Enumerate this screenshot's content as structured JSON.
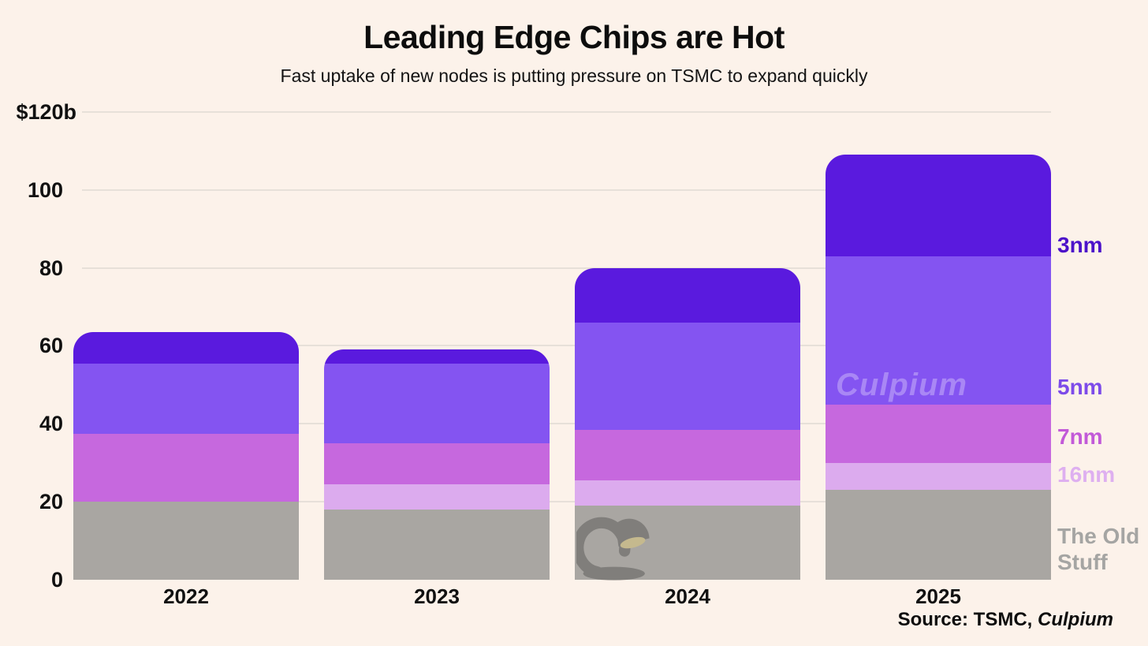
{
  "title": "Leading Edge Chips are Hot",
  "subtitle": "Fast uptake of new nodes is putting pressure on TSMC to expand quickly",
  "watermark": "Culpium",
  "source": {
    "prefix": "Source: TSMC, ",
    "brand": "Culpium"
  },
  "colors": {
    "background": "#fcf2ea",
    "gridline": "#e7e0d9",
    "text": "#0d0d0d",
    "node_3nm": "#5a1ade",
    "node_5nm": "#8454f1",
    "node_7nm": "#c668de",
    "node_16nm": "#dcabee",
    "old_stuff": "#a9a6a2"
  },
  "legend": {
    "position": "right",
    "items": [
      {
        "label": "3nm",
        "color": "#4c12c9"
      },
      {
        "label": "5nm",
        "color": "#7d4be9"
      },
      {
        "label": "7nm",
        "color": "#c25ad8"
      },
      {
        "label": "16nm",
        "color": "#deaff0"
      },
      {
        "label": "The Old Stuff",
        "color": "#a5a5a3"
      }
    ]
  },
  "chart_data": {
    "type": "bar",
    "stacked": true,
    "title": "Leading Edge Chips are Hot",
    "subtitle": "Fast uptake of new nodes is putting pressure on TSMC to expand quickly",
    "unit": "billions USD (TSMC revenue by node)",
    "categories": [
      "2022",
      "2023",
      "2024",
      "2025"
    ],
    "series": [
      {
        "name": "The Old Stuff",
        "color": "#a9a6a2",
        "values": [
          20,
          18,
          19,
          23
        ]
      },
      {
        "name": "16nm",
        "color": "#dcabee",
        "values": [
          0,
          6.5,
          6.5,
          7
        ]
      },
      {
        "name": "7nm",
        "color": "#c668de",
        "values": [
          17.5,
          10.5,
          13,
          15
        ]
      },
      {
        "name": "5nm",
        "color": "#8454f1",
        "values": [
          18,
          20.5,
          27.5,
          38
        ]
      },
      {
        "name": "3nm",
        "color": "#5a1ade",
        "values": [
          8,
          3.5,
          14,
          26
        ]
      }
    ],
    "totals": [
      63.5,
      59,
      80,
      109
    ],
    "ylim": [
      0,
      120
    ],
    "grid": true,
    "legend_position": "right",
    "yticks": [
      {
        "value": 0,
        "label": "0"
      },
      {
        "value": 20,
        "label": "20"
      },
      {
        "value": 40,
        "label": "40"
      },
      {
        "value": 60,
        "label": "60"
      },
      {
        "value": 80,
        "label": "80"
      },
      {
        "value": 100,
        "label": "100"
      },
      {
        "value": 120,
        "label": "$120b"
      }
    ]
  }
}
